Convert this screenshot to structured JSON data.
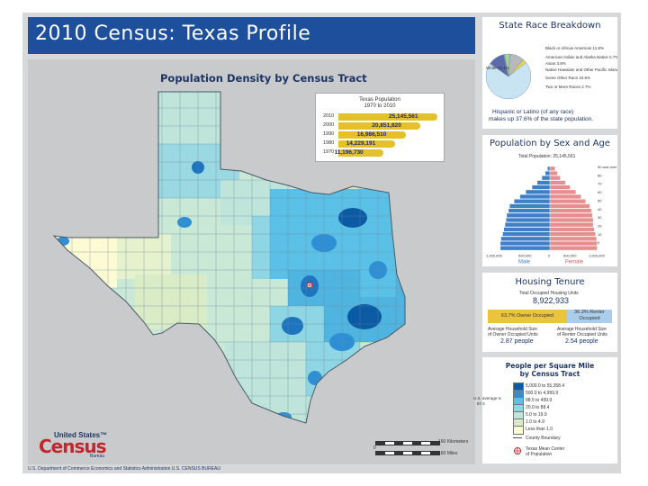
{
  "header": {
    "title": "2010 Census: Texas Profile"
  },
  "map": {
    "title": "Population Density by Census Tract",
    "texas_population": {
      "title_line1": "Texas Population",
      "title_line2": "1970 to 2010",
      "rows": [
        {
          "year": "2010",
          "value": "25,145,561",
          "level": 1.0
        },
        {
          "year": "2000",
          "value": "20,851,820",
          "level": 0.83
        },
        {
          "year": "1990",
          "value": "16,986,510",
          "level": 0.68
        },
        {
          "year": "1980",
          "value": "14,229,191",
          "level": 0.57
        },
        {
          "year": "1970",
          "value": "11,196,730",
          "level": 0.45
        }
      ]
    },
    "scale": {
      "km_labels": [
        "0",
        "40",
        "80",
        "120",
        "160 Kilometers"
      ],
      "mile_labels": [
        "0",
        "40",
        "80",
        "120",
        "160 Miles"
      ]
    }
  },
  "race_panel": {
    "title": "State Race Breakdown",
    "slices": [
      {
        "label": "White 70.4%",
        "value": 70.4,
        "color": "#c8e3f2"
      },
      {
        "label": "Black or African American 11.8%",
        "value": 11.8,
        "color": "#5b6aa8"
      },
      {
        "label": "American Indian and Alaska Native 0.7%",
        "value": 0.7,
        "color": "#7fb3d5"
      },
      {
        "label": "Asian 3.8%",
        "value": 3.8,
        "color": "#a9d18e"
      },
      {
        "label": "Native Hawaiian and Other Pacific Islander 0.1%",
        "value": 0.1,
        "color": "#3c7a3c"
      },
      {
        "label": "Some Other Race 10.5%",
        "value": 10.5,
        "color": "#b8b9bb"
      },
      {
        "label": "Two or More Races 2.7%",
        "value": 2.7,
        "color": "#ecd24a"
      }
    ],
    "hispanic_line1": "Hispanic or Latino (of any race)",
    "hispanic_line2": "makes up 37.6% of the state population."
  },
  "age_panel": {
    "title": "Population by Sex and Age",
    "total": "Total Population: 25,145,561",
    "age_labels": [
      "90 and over",
      "80",
      "70",
      "60",
      "50",
      "40",
      "30",
      "20",
      "10",
      "0"
    ],
    "male_x_labels": [
      "1,000,000",
      "500,000",
      "0"
    ],
    "female_x_labels": [
      "500,000",
      "1,000,000"
    ],
    "male_label": "Male",
    "female_label": "Female",
    "male_levels": [
      0.04,
      0.08,
      0.14,
      0.22,
      0.31,
      0.42,
      0.52,
      0.62,
      0.7,
      0.72,
      0.75,
      0.76,
      0.78,
      0.8,
      0.82,
      0.85,
      0.86,
      0.86
    ],
    "female_levels": [
      0.09,
      0.13,
      0.18,
      0.27,
      0.35,
      0.45,
      0.54,
      0.62,
      0.69,
      0.72,
      0.74,
      0.75,
      0.75,
      0.77,
      0.79,
      0.81,
      0.82,
      0.82
    ]
  },
  "housing_panel": {
    "title": "Housing Tenure",
    "occupied_line1": "Total Occupied Housing Units",
    "occupied_value": "8,922,933",
    "owner_label": "63.7% Owner Occupied",
    "owner_share": 63.7,
    "renter_line1": "36.3% Renter",
    "renter_line2": "Occupied",
    "owner_size_line1": "Average Household Size",
    "owner_size_line2": "of Owner Occupied Units",
    "owner_size_value": "2.87 people",
    "renter_size_line1": "Average Household Size",
    "renter_size_line2": "of Renter Occupied Units",
    "renter_size_value": "2.54 people"
  },
  "legend_panel": {
    "title_line1": "People per Square Mile",
    "title_line2": "by Census Tract",
    "state_average_line1": "U.S. average is",
    "state_average_line2": "87.4",
    "classes": [
      {
        "label": "5,000.0 to 55,358.4",
        "color": "#0b5aa4"
      },
      {
        "label": "500.0 to 4,999.9",
        "color": "#2e8fd4"
      },
      {
        "label": "88.5 to 499.9",
        "color": "#5bc0e6"
      },
      {
        "label": "20.0 to 88.4",
        "color": "#8ed6e3"
      },
      {
        "label": "5.0 to 19.9",
        "color": "#bfe4d9"
      },
      {
        "label": "1.0 to 4.9",
        "color": "#d9ecc6"
      },
      {
        "label": "Less than 1.0",
        "color": "#fdfbd3"
      }
    ],
    "county_boundary": "County Boundary",
    "center_line1": "Texas Mean Center",
    "center_line2": "of Population"
  },
  "logo": {
    "line1": "United States™",
    "line2": "Census",
    "line3": "Bureau"
  },
  "footer": "U.S. Department of Commerce  Economics and Statistics Administration  U.S. CENSUS BUREAU"
}
